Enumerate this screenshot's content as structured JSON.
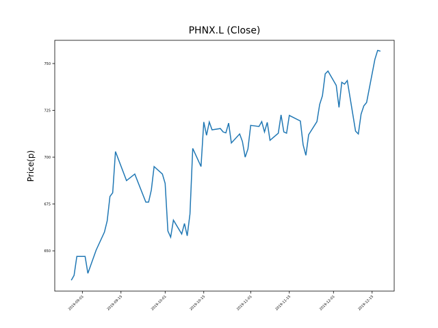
{
  "chart_data": {
    "type": "line",
    "title": "PHNX.L (Close)",
    "y_label": "Price(p)",
    "x": [
      "2019-08-28",
      "2019-08-29",
      "2019-08-30",
      "2019-09-02",
      "2019-09-03",
      "2019-09-06",
      "2019-09-09",
      "2019-09-10",
      "2019-09-11",
      "2019-09-12",
      "2019-09-13",
      "2019-09-17",
      "2019-09-20",
      "2019-09-24",
      "2019-09-25",
      "2019-09-26",
      "2019-09-27",
      "2019-09-30",
      "2019-10-01",
      "2019-10-02",
      "2019-10-03",
      "2019-10-04",
      "2019-10-07",
      "2019-10-08",
      "2019-10-09",
      "2019-10-10",
      "2019-10-11",
      "2019-10-14",
      "2019-10-15",
      "2019-10-16",
      "2019-10-17",
      "2019-10-18",
      "2019-10-21",
      "2019-10-22",
      "2019-10-23",
      "2019-10-24",
      "2019-10-25",
      "2019-10-28",
      "2019-10-29",
      "2019-10-30",
      "2019-10-31",
      "2019-11-01",
      "2019-11-04",
      "2019-11-05",
      "2019-11-06",
      "2019-11-07",
      "2019-11-08",
      "2019-11-11",
      "2019-11-12",
      "2019-11-13",
      "2019-11-14",
      "2019-11-15",
      "2019-11-19",
      "2019-11-20",
      "2019-11-21",
      "2019-11-22",
      "2019-11-25",
      "2019-11-26",
      "2019-11-27",
      "2019-11-28",
      "2019-11-29",
      "2019-12-02",
      "2019-12-03",
      "2019-12-04",
      "2019-12-05",
      "2019-12-06",
      "2019-12-09",
      "2019-12-10",
      "2019-12-11",
      "2019-12-12",
      "2019-12-13",
      "2019-12-16",
      "2019-12-17",
      "2019-12-18"
    ],
    "series": [
      {
        "name": "Close",
        "color": "#1f77b4",
        "values": [
          634.3,
          636.9,
          647,
          647,
          638,
          650.4,
          660,
          666,
          679,
          681,
          703,
          687.5,
          691,
          676,
          676,
          682.5,
          695,
          691,
          686,
          660.6,
          657.3,
          666.4,
          659,
          664.6,
          658,
          669.7,
          704.7,
          695,
          718.8,
          711.7,
          718.8,
          714.6,
          715.3,
          713.5,
          713,
          718.2,
          707.6,
          712.4,
          708.4,
          700,
          704.4,
          717,
          716.4,
          719,
          713.5,
          718.6,
          709,
          712.8,
          722.6,
          713.5,
          712.8,
          722.3,
          719.3,
          706.6,
          701,
          712,
          719,
          728.2,
          732.8,
          744.5,
          746,
          738.3,
          726.6,
          740,
          739,
          740.9,
          713.9,
          712.4,
          723,
          727.4,
          729.2,
          752.2,
          757,
          756.6
        ]
      }
    ],
    "xlim": [
      "2019-08-22",
      "2019-12-23"
    ],
    "xticks": [
      "2019-09-01",
      "2019-09-15",
      "2019-10-01",
      "2019-10-15",
      "2019-11-01",
      "2019-11-15",
      "2019-12-01",
      "2019-12-15"
    ],
    "ylim": [
      628.5,
      762.4
    ],
    "yticks": [
      650,
      675,
      700,
      725,
      750
    ]
  }
}
